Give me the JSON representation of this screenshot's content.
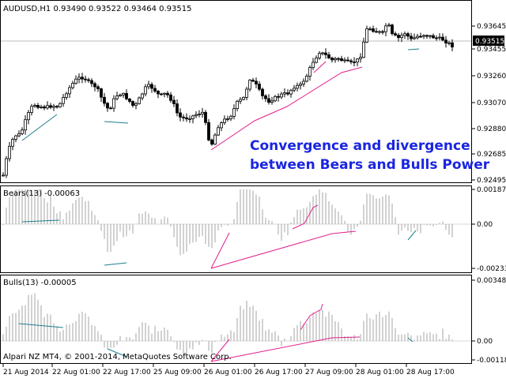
{
  "main": {
    "symbol": "AUDUSD,H1",
    "ohlc": [
      "0.93490",
      "0.93522",
      "0.93464",
      "0.93515"
    ],
    "price_axis": [
      "0.93645",
      "0.93455",
      "0.93260",
      "0.93070",
      "0.92880",
      "0.92685",
      "0.92495"
    ],
    "current_price": "0.93515",
    "annotation_line1": "Convergence and divergence",
    "annotation_line2": "between Bears and Bulls Power"
  },
  "bears": {
    "label": "Bears(13) -0.00063",
    "axis": [
      "0.00187",
      "0.00",
      "-0.00233"
    ]
  },
  "bulls": {
    "label": "Bulls(13) -0.00005",
    "axis": [
      "0.00348",
      "0.00",
      "-0.00118"
    ],
    "copyright": "Alpari NZ MT4, © 2001-2014, MetaQuotes Software Corp."
  },
  "time_axis": [
    "21 Aug 2014",
    "22 Aug 01:00",
    "22 Aug 17:00",
    "25 Aug 09:00",
    "26 Aug 01:00",
    "26 Aug 17:00",
    "27 Aug 09:00",
    "28 Aug 01:00",
    "28 Aug 17:00"
  ],
  "colors": {
    "divergence": "#e0208c",
    "convergence": "#1e7f8c",
    "histogram": "#b4b4b4",
    "candle": "#000000",
    "annotation": "#1a25e0",
    "price_line": "#bdbdbd"
  }
}
